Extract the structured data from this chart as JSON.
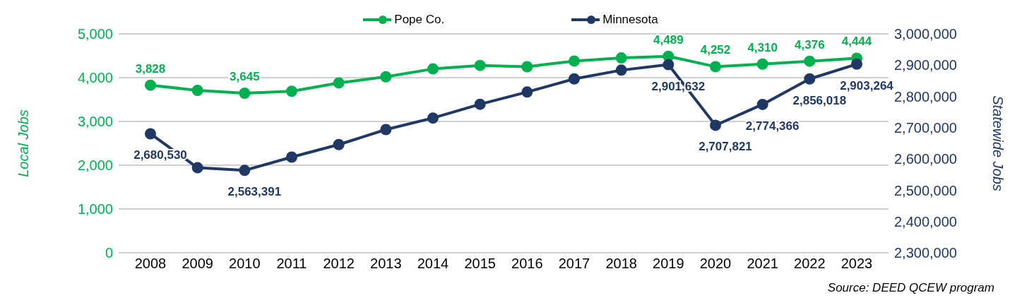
{
  "chart_data": {
    "type": "line",
    "categories": [
      "2008",
      "2009",
      "2010",
      "2011",
      "2012",
      "2013",
      "2014",
      "2015",
      "2016",
      "2017",
      "2018",
      "2019",
      "2020",
      "2021",
      "2022",
      "2023"
    ],
    "series": [
      {
        "name": "Pope Co.",
        "color": "#00b050",
        "values": [
          3828,
          3710,
          3645,
          3690,
          3880,
          4020,
          4200,
          4280,
          4250,
          4380,
          4450,
          4489,
          4252,
          4310,
          4376,
          4444
        ],
        "value_labels": [
          "3,828",
          null,
          "3,645",
          null,
          null,
          null,
          null,
          null,
          null,
          null,
          null,
          "4,489",
          "4,252",
          "4,310",
          "4,376",
          "4,444"
        ]
      },
      {
        "name": "Minnesota",
        "color": "#203864",
        "axis": "y2",
        "values": [
          2680530,
          2572000,
          2563391,
          2606000,
          2646000,
          2694000,
          2731000,
          2775000,
          2814000,
          2856000,
          2884000,
          2901632,
          2707821,
          2774366,
          2856018,
          2903264
        ],
        "value_labels": [
          "2,680,530",
          null,
          "2,563,391",
          null,
          null,
          null,
          null,
          null,
          null,
          null,
          null,
          "2,901,632",
          "2,707,821",
          "2,774,366",
          "2,856,018",
          "2,903,264"
        ]
      }
    ],
    "ylabel": "Local Jobs",
    "y2label": "Statewide Jobs",
    "ylim": [
      0,
      5000
    ],
    "yticks": [
      0,
      {
        "value": 1000,
        "label": "1,000"
      },
      {
        "value": 2000,
        "label": "2,000"
      },
      {
        "value": 3000,
        "label": "3,000"
      },
      {
        "value": 4000,
        "label": "4,000"
      },
      {
        "value": 5000,
        "label": "5,000"
      }
    ],
    "y2lim": [
      2300000,
      3000000
    ],
    "y2ticks": [
      {
        "value": 2300000,
        "label": "2,300,000"
      },
      {
        "value": 2400000,
        "label": "2,400,000"
      },
      {
        "value": 2500000,
        "label": "2,500,000"
      },
      {
        "value": 2600000,
        "label": "2,600,000"
      },
      {
        "value": 2700000,
        "label": "2,700,000"
      },
      {
        "value": 2800000,
        "label": "2,800,000"
      },
      {
        "value": 2900000,
        "label": "2,900,000"
      },
      {
        "value": 3000000,
        "label": "3,000,000"
      }
    ],
    "grid": "y",
    "legend": "top",
    "marker": "circle",
    "line_style": "solid",
    "annotations": [
      "Source: DEED QCEW program"
    ]
  }
}
